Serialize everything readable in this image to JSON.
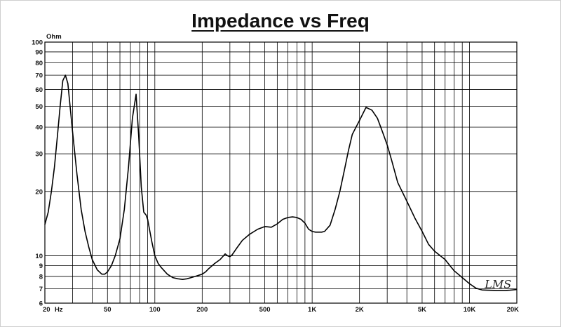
{
  "chart_data": {
    "type": "line",
    "title": "Impedance vs Freq",
    "ylabel_unit": "Ohm",
    "x_scale": "log",
    "y_scale": "log",
    "xlim": [
      20,
      20000
    ],
    "ylim": [
      6,
      100
    ],
    "grid": true,
    "x_grid": [
      20,
      30,
      40,
      50,
      60,
      70,
      80,
      90,
      100,
      200,
      300,
      400,
      500,
      600,
      700,
      800,
      900,
      1000,
      2000,
      3000,
      4000,
      5000,
      6000,
      7000,
      8000,
      9000,
      10000,
      20000
    ],
    "x_tick_labels": [
      {
        "value": 20,
        "label": "20"
      },
      {
        "value": 50,
        "label": "50"
      },
      {
        "value": 100,
        "label": "100"
      },
      {
        "value": 200,
        "label": "200"
      },
      {
        "value": 500,
        "label": "500"
      },
      {
        "value": 1000,
        "label": "1K"
      },
      {
        "value": 2000,
        "label": "2K"
      },
      {
        "value": 5000,
        "label": "5K"
      },
      {
        "value": 10000,
        "label": "10K"
      },
      {
        "value": 20000,
        "label": "20K"
      }
    ],
    "x_unit_label": "Hz",
    "y_ticks": [
      6,
      7,
      8,
      9,
      10,
      20,
      30,
      40,
      50,
      60,
      70,
      80,
      90,
      100
    ],
    "series": [
      {
        "color": "#000000",
        "x": [
          20,
          21,
          22,
          23,
          24,
          25,
          26,
          27,
          28,
          30,
          32,
          34,
          36,
          38,
          40,
          43,
          46,
          48,
          50,
          53,
          56,
          60,
          64,
          68,
          72,
          76,
          79,
          82,
          85,
          88,
          90,
          93,
          96,
          100,
          105,
          110,
          120,
          130,
          140,
          150,
          160,
          170,
          180,
          190,
          200,
          210,
          220,
          240,
          260,
          280,
          290,
          300,
          310,
          330,
          360,
          400,
          450,
          500,
          550,
          600,
          650,
          700,
          750,
          800,
          850,
          900,
          950,
          1000,
          1050,
          1100,
          1150,
          1200,
          1300,
          1400,
          1500,
          1600,
          1700,
          1800,
          2000,
          2200,
          2400,
          2600,
          2800,
          3000,
          3200,
          3500,
          4000,
          4500,
          5000,
          5500,
          6000,
          7000,
          7500,
          8000,
          9000,
          10000,
          11000,
          12000,
          13000,
          15000,
          17000,
          18000,
          20000
        ],
        "y": [
          14,
          16,
          20,
          26,
          36,
          50,
          66,
          70,
          64,
          38,
          24,
          16.5,
          13,
          11,
          9.6,
          8.6,
          8.2,
          8.2,
          8.4,
          9,
          10,
          12,
          16.5,
          26,
          44,
          57,
          36,
          21,
          16,
          15.5,
          14.8,
          13,
          11.5,
          10,
          9.2,
          8.8,
          8.2,
          7.9,
          7.8,
          7.75,
          7.8,
          7.9,
          8.0,
          8.1,
          8.2,
          8.4,
          8.7,
          9.2,
          9.6,
          10.2,
          10,
          9.9,
          10.1,
          10.8,
          11.8,
          12.6,
          13.3,
          13.7,
          13.6,
          14.1,
          14.8,
          15.1,
          15.2,
          15.1,
          14.8,
          14.2,
          13.3,
          13,
          12.9,
          12.9,
          12.9,
          13.0,
          13.9,
          16.5,
          20,
          25,
          31,
          37,
          43,
          49.5,
          48,
          44,
          38,
          33,
          28,
          22,
          18,
          15,
          13,
          11.3,
          10.5,
          9.6,
          9,
          8.5,
          7.9,
          7.4,
          7.05,
          6.92,
          6.9,
          6.88,
          6.88,
          6.9,
          6.95
        ]
      }
    ]
  },
  "annotations": {
    "signature": "LMS"
  }
}
